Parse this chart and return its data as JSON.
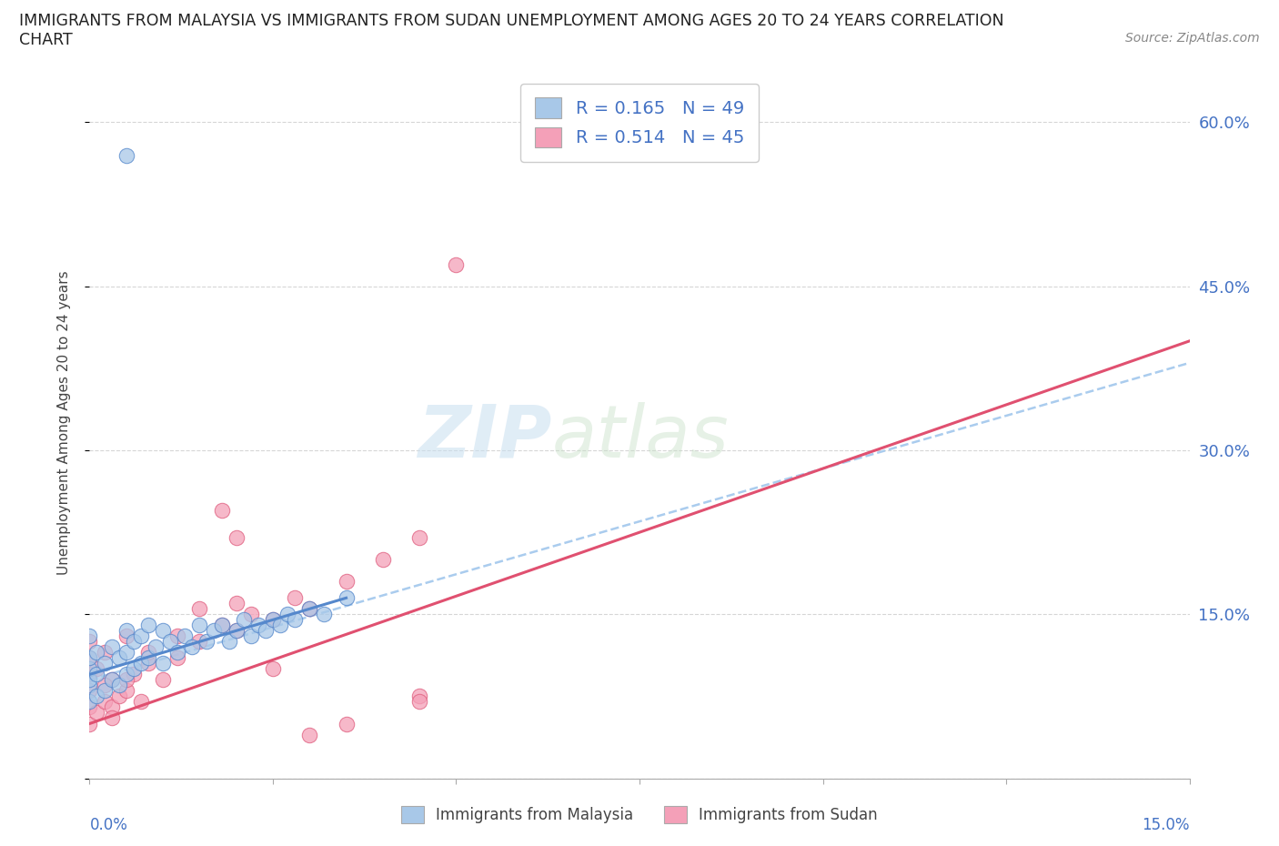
{
  "title_line1": "IMMIGRANTS FROM MALAYSIA VS IMMIGRANTS FROM SUDAN UNEMPLOYMENT AMONG AGES 20 TO 24 YEARS CORRELATION",
  "title_line2": "CHART",
  "source": "Source: ZipAtlas.com",
  "ylabel": "Unemployment Among Ages 20 to 24 years",
  "xlim": [
    0.0,
    15.0
  ],
  "ylim": [
    0.0,
    65.0
  ],
  "legend_r1": "R = 0.165",
  "legend_n1": "N = 49",
  "legend_r2": "R = 0.514",
  "legend_n2": "N = 45",
  "color_malaysia": "#a8c8e8",
  "color_sudan": "#f4a0b8",
  "color_text_blue": "#4472c4",
  "color_text_pink": "#e06080",
  "trend_color_malaysia_solid": "#5588cc",
  "trend_color_malaysia_dash": "#99bbdd",
  "trend_color_sudan": "#e05070",
  "background_color": "#ffffff",
  "watermark_zip": "ZIP",
  "watermark_atlas": "atlas",
  "malaysia_x": [
    0.0,
    0.0,
    0.0,
    0.0,
    0.0,
    0.0,
    0.1,
    0.1,
    0.1,
    0.2,
    0.2,
    0.3,
    0.3,
    0.4,
    0.4,
    0.5,
    0.5,
    0.5,
    0.6,
    0.6,
    0.7,
    0.7,
    0.8,
    0.8,
    0.9,
    1.0,
    1.0,
    1.1,
    1.2,
    1.3,
    1.4,
    1.5,
    1.6,
    1.7,
    1.8,
    1.9,
    2.0,
    2.1,
    2.2,
    2.3,
    2.4,
    2.5,
    2.6,
    2.7,
    2.8,
    3.0,
    3.2,
    3.5,
    0.5
  ],
  "malaysia_y": [
    7.0,
    8.5,
    9.0,
    10.0,
    11.0,
    13.0,
    7.5,
    9.5,
    11.5,
    8.0,
    10.5,
    9.0,
    12.0,
    8.5,
    11.0,
    9.5,
    11.5,
    13.5,
    10.0,
    12.5,
    10.5,
    13.0,
    11.0,
    14.0,
    12.0,
    10.5,
    13.5,
    12.5,
    11.5,
    13.0,
    12.0,
    14.0,
    12.5,
    13.5,
    14.0,
    12.5,
    13.5,
    14.5,
    13.0,
    14.0,
    13.5,
    14.5,
    14.0,
    15.0,
    14.5,
    15.5,
    15.0,
    16.5,
    57.0
  ],
  "sudan_x": [
    0.0,
    0.0,
    0.0,
    0.0,
    0.0,
    0.0,
    0.1,
    0.1,
    0.2,
    0.2,
    0.3,
    0.3,
    0.4,
    0.5,
    0.5,
    0.6,
    0.7,
    0.8,
    1.0,
    1.2,
    1.5,
    1.8,
    2.0,
    2.0,
    2.2,
    2.5,
    2.8,
    3.0,
    3.5,
    4.0,
    4.5,
    5.0,
    4.5,
    0.3,
    0.5,
    0.8,
    1.2,
    1.8,
    2.5,
    3.5,
    4.5,
    0.2,
    1.5,
    2.0,
    3.0
  ],
  "sudan_y": [
    5.0,
    6.5,
    8.0,
    9.5,
    11.0,
    12.5,
    6.0,
    10.0,
    7.0,
    11.5,
    6.5,
    9.0,
    7.5,
    8.0,
    13.0,
    9.5,
    7.0,
    10.5,
    9.0,
    11.0,
    12.5,
    14.0,
    13.5,
    16.0,
    15.0,
    14.5,
    16.5,
    15.5,
    18.0,
    20.0,
    22.0,
    47.0,
    7.5,
    5.5,
    9.0,
    11.5,
    13.0,
    24.5,
    10.0,
    5.0,
    7.0,
    8.5,
    15.5,
    22.0,
    4.0
  ],
  "malaysia_trend_x0": 0.0,
  "malaysia_trend_x1": 3.5,
  "malaysia_trend_y0": 9.5,
  "malaysia_trend_y1": 16.5,
  "malaysia_dash_x0": 0.0,
  "malaysia_dash_x1": 15.0,
  "malaysia_dash_y0": 9.0,
  "malaysia_dash_y1": 38.0,
  "sudan_trend_x0": 0.0,
  "sudan_trend_x1": 15.0,
  "sudan_trend_y0": 5.0,
  "sudan_trend_y1": 40.0
}
